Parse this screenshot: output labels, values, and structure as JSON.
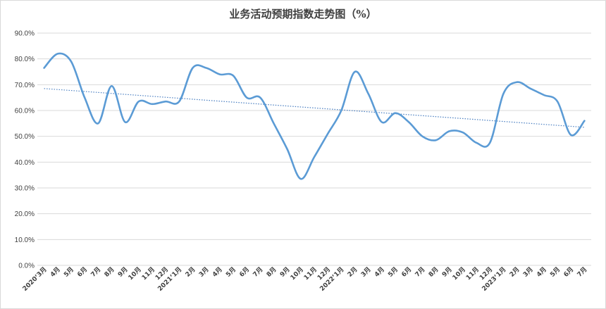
{
  "chart_data": {
    "type": "line",
    "title": "业务活动预期指数走势图（%）",
    "xlabel": "",
    "ylabel": "",
    "ylim": [
      0,
      90
    ],
    "y_ticks": [
      "0.0%",
      "10.0%",
      "20.0%",
      "30.0%",
      "40.0%",
      "50.0%",
      "60.0%",
      "70.0%",
      "80.0%",
      "90.0%"
    ],
    "y_tick_values": [
      0,
      10,
      20,
      30,
      40,
      50,
      60,
      70,
      80,
      90
    ],
    "categories": [
      "2020’3月",
      "4月",
      "5月",
      "6月",
      "7月",
      "8月",
      "9月",
      "10月",
      "11月",
      "12月",
      "2021’1月",
      "2月",
      "3月",
      "4月",
      "5月",
      "6月",
      "7月",
      "8月",
      "9月",
      "10月",
      "11月",
      "12月",
      "2022’1月",
      "2月",
      "3月",
      "4月",
      "5月",
      "6月",
      "7月",
      "8月",
      "9月",
      "10月",
      "11月",
      "12月",
      "2023’1月",
      "2月",
      "3月",
      "4月",
      "5月",
      "6月",
      "7月"
    ],
    "series": [
      {
        "values": [
          76.5,
          82.0,
          79.0,
          65.0,
          55.0,
          69.5,
          55.5,
          63.5,
          62.5,
          63.5,
          63.5,
          76.5,
          76.5,
          74.0,
          73.5,
          65.0,
          65.0,
          55.0,
          45.0,
          33.5,
          42.0,
          51.0,
          60.0,
          75.0,
          66.5,
          55.5,
          59.0,
          55.5,
          50.0,
          48.5,
          52.0,
          51.5,
          47.5,
          47.5,
          66.5,
          71.0,
          68.5,
          66.0,
          63.5,
          50.5,
          56.0
        ],
        "color": "#5b9bd5"
      }
    ],
    "trendline": {
      "start": 68.5,
      "end": 53.5,
      "color": "#4a7fc1",
      "style": "dotted"
    },
    "grid": true,
    "legend": "none"
  }
}
